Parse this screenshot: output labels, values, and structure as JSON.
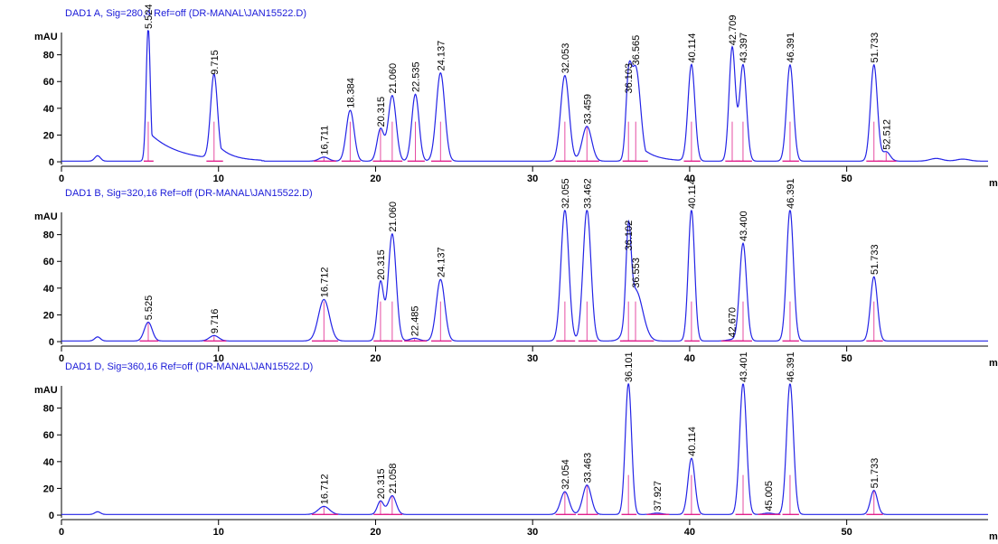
{
  "chart_data": [
    {
      "type": "line",
      "title": "DAD1 A, Sig=280,4 Ref=off (DR-MANAL\\JAN15522.D)",
      "ylabel": "mAU",
      "xlabel": "m",
      "xlim": [
        0,
        59
      ],
      "ylim": [
        -2,
        98
      ],
      "x_ticks": [
        0,
        10,
        20,
        30,
        40,
        50
      ],
      "y_ticks": [
        0,
        20,
        40,
        60,
        80
      ],
      "colors": {
        "trace": "#2323e6",
        "baseline": "#e0208c",
        "title": "#1a1ad8"
      },
      "peaks": [
        {
          "rt": 2.3,
          "height": 4,
          "width": 0.18
        },
        {
          "rt": 5.524,
          "label": "5.524",
          "height": 100,
          "width": 0.13,
          "tail": 1.8
        },
        {
          "rt": 9.715,
          "label": "9.715",
          "height": 63,
          "width": 0.22,
          "tail": 0.8
        },
        {
          "rt": 16.711,
          "label": "16,711",
          "height": 3,
          "width": 0.3
        },
        {
          "rt": 18.384,
          "label": "18.384",
          "height": 38,
          "width": 0.25
        },
        {
          "rt": 20.315,
          "label": "20.315",
          "height": 24,
          "width": 0.22
        },
        {
          "rt": 21.06,
          "label": "21.060",
          "height": 49,
          "width": 0.25
        },
        {
          "rt": 22.535,
          "label": "22.535",
          "height": 50,
          "width": 0.23
        },
        {
          "rt": 24.137,
          "label": "24.137",
          "height": 66,
          "width": 0.27
        },
        {
          "rt": 32.053,
          "label": "32.053",
          "height": 64,
          "width": 0.27
        },
        {
          "rt": 33.459,
          "label": "33.459",
          "height": 26,
          "width": 0.3
        },
        {
          "rt": 36.103,
          "label": "36.103",
          "height": 49,
          "width": 0.17
        },
        {
          "rt": 36.565,
          "label": "36.565",
          "height": 70,
          "width": 0.3,
          "tail": 0.9
        },
        {
          "rt": 40.114,
          "label": "40.114",
          "height": 72,
          "width": 0.22
        },
        {
          "rt": 42.709,
          "label": "42.709",
          "height": 85,
          "width": 0.2
        },
        {
          "rt": 43.397,
          "label": "43.397",
          "height": 72,
          "width": 0.22
        },
        {
          "rt": 46.391,
          "label": "46.391",
          "height": 72,
          "width": 0.22
        },
        {
          "rt": 51.733,
          "label": "51.733",
          "height": 72,
          "width": 0.22
        },
        {
          "rt": 52.512,
          "label": "52.512",
          "height": 7,
          "width": 0.25
        },
        {
          "rt": 55.7,
          "height": 2,
          "width": 0.4
        },
        {
          "rt": 57.4,
          "height": 1.5,
          "width": 0.4
        }
      ]
    },
    {
      "type": "line",
      "title": "DAD1 B, Sig=320,16 Ref=off (DR-MANAL\\JAN15522.D)",
      "ylabel": "mAU",
      "xlabel": "m",
      "xlim": [
        0,
        59
      ],
      "ylim": [
        -2,
        98
      ],
      "x_ticks": [
        0,
        10,
        20,
        30,
        40,
        50
      ],
      "y_ticks": [
        0,
        20,
        40,
        60,
        80
      ],
      "colors": {
        "trace": "#2323e6",
        "baseline": "#e0208c",
        "title": "#1a1ad8"
      },
      "peaks": [
        {
          "rt": 2.3,
          "height": 3,
          "width": 0.18
        },
        {
          "rt": 5.525,
          "label": "5.525",
          "height": 14,
          "width": 0.25
        },
        {
          "rt": 9.716,
          "label": "9.716",
          "height": 4,
          "width": 0.3
        },
        {
          "rt": 16.712,
          "label": "16.712",
          "height": 31,
          "width": 0.35
        },
        {
          "rt": 20.315,
          "label": "20.315",
          "height": 44,
          "width": 0.2
        },
        {
          "rt": 21.06,
          "label": "21.060",
          "height": 80,
          "width": 0.25
        },
        {
          "rt": 22.485,
          "label": "22.485",
          "height": 2,
          "width": 0.3
        },
        {
          "rt": 24.137,
          "label": "24.137",
          "height": 46,
          "width": 0.27
        },
        {
          "rt": 32.055,
          "label": "32.055",
          "height": 98,
          "width": 0.25
        },
        {
          "rt": 33.462,
          "label": "33.462",
          "height": 98,
          "width": 0.25
        },
        {
          "rt": 36.102,
          "label": "36.102",
          "height": 66,
          "width": 0.16
        },
        {
          "rt": 36.553,
          "label": "36.553",
          "height": 38,
          "width": 0.45
        },
        {
          "rt": 40.114,
          "label": "40.114",
          "height": 98,
          "width": 0.2
        },
        {
          "rt": 42.67,
          "label": "42.670",
          "height": 1,
          "width": 0.3
        },
        {
          "rt": 43.4,
          "label": "43.400",
          "height": 73,
          "width": 0.22
        },
        {
          "rt": 46.391,
          "label": "46.391",
          "height": 98,
          "width": 0.22
        },
        {
          "rt": 51.733,
          "label": "51.733",
          "height": 48,
          "width": 0.22
        }
      ]
    },
    {
      "type": "line",
      "title": "DAD1 D, Sig=360,16 Ref=off (DR-MANAL\\JAN15522.D)",
      "ylabel": "mAU",
      "xlabel": "m",
      "xlim": [
        0,
        59
      ],
      "ylim": [
        -2,
        98
      ],
      "x_ticks": [
        0,
        10,
        20,
        30,
        40,
        50
      ],
      "y_ticks": [
        0,
        20,
        40,
        60,
        80
      ],
      "colors": {
        "trace": "#2323e6",
        "baseline": "#e0208c",
        "title": "#1a1ad8"
      },
      "peaks": [
        {
          "rt": 2.3,
          "height": 2,
          "width": 0.18
        },
        {
          "rt": 16.712,
          "label": "16.712",
          "height": 6,
          "width": 0.35
        },
        {
          "rt": 20.315,
          "label": "20.315",
          "height": 10,
          "width": 0.2
        },
        {
          "rt": 21.058,
          "label": "21.058",
          "height": 14,
          "width": 0.25
        },
        {
          "rt": 32.054,
          "label": "32.054",
          "height": 17,
          "width": 0.27
        },
        {
          "rt": 33.463,
          "label": "33.463",
          "height": 22,
          "width": 0.27
        },
        {
          "rt": 36.101,
          "label": "36.101",
          "height": 98,
          "width": 0.2
        },
        {
          "rt": 37.927,
          "label": "37.927",
          "height": 1,
          "width": 0.3
        },
        {
          "rt": 40.114,
          "label": "40.114",
          "height": 42,
          "width": 0.22
        },
        {
          "rt": 43.401,
          "label": "43.401",
          "height": 98,
          "width": 0.22
        },
        {
          "rt": 45.005,
          "label": "45.005",
          "height": 1,
          "width": 0.3
        },
        {
          "rt": 46.391,
          "label": "46.391",
          "height": 98,
          "width": 0.22
        },
        {
          "rt": 51.733,
          "label": "51.733",
          "height": 18,
          "width": 0.22
        }
      ]
    }
  ]
}
